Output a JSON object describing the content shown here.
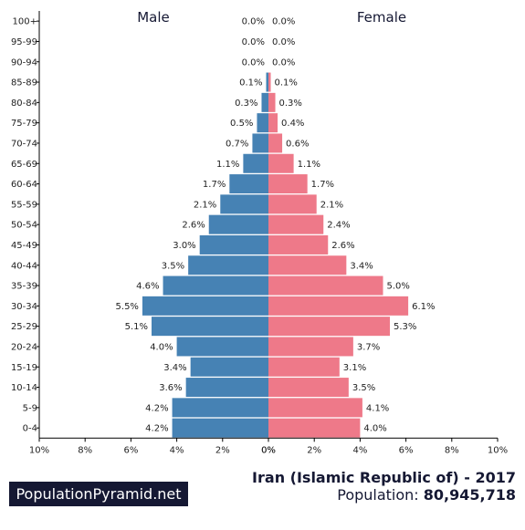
{
  "chart_data": {
    "type": "bar",
    "orientation": "horizontal-pyramid",
    "categories": [
      "100+",
      "95-99",
      "90-94",
      "85-89",
      "80-84",
      "75-79",
      "70-74",
      "65-69",
      "60-64",
      "55-59",
      "50-54",
      "45-49",
      "40-44",
      "35-39",
      "30-34",
      "25-29",
      "20-24",
      "15-19",
      "10-14",
      "5-9",
      "0-4"
    ],
    "series": [
      {
        "name": "Male",
        "color": "#4682b4",
        "values": [
          0.0,
          0.0,
          0.0,
          0.1,
          0.3,
          0.5,
          0.7,
          1.1,
          1.7,
          2.1,
          2.6,
          3.0,
          3.5,
          4.6,
          5.5,
          5.1,
          4.0,
          3.4,
          3.6,
          4.2,
          4.2
        ],
        "labels": [
          "0.0%",
          "0.0%",
          "0.0%",
          "0.1%",
          "0.3%",
          "0.5%",
          "0.7%",
          "1.1%",
          "1.7%",
          "2.1%",
          "2.6%",
          "3.0%",
          "3.5%",
          "4.6%",
          "5.5%",
          "5.1%",
          "4.0%",
          "3.4%",
          "3.6%",
          "4.2%",
          "4.2%"
        ]
      },
      {
        "name": "Female",
        "color": "#ee7989",
        "values": [
          0.0,
          0.0,
          0.0,
          0.1,
          0.3,
          0.4,
          0.6,
          1.1,
          1.7,
          2.1,
          2.4,
          2.6,
          3.4,
          5.0,
          6.1,
          5.3,
          3.7,
          3.1,
          3.5,
          4.1,
          4.0
        ],
        "labels": [
          "0.0%",
          "0.0%",
          "0.0%",
          "0.1%",
          "0.3%",
          "0.4%",
          "0.6%",
          "1.1%",
          "1.7%",
          "2.1%",
          "2.4%",
          "2.6%",
          "3.4%",
          "5.0%",
          "6.1%",
          "5.3%",
          "3.7%",
          "3.1%",
          "3.5%",
          "4.1%",
          "4.0%"
        ]
      }
    ],
    "x_ticks_left": [
      "10%",
      "8%",
      "6%",
      "4%",
      "2%",
      "0%"
    ],
    "x_ticks_right": [
      "0%",
      "2%",
      "4%",
      "6%",
      "8%",
      "10%"
    ],
    "xlim": [
      0,
      10
    ],
    "unit": "%",
    "grid": false,
    "legend": "top-center"
  },
  "footer": {
    "brand": "PopulationPyramid.net",
    "title": "Iran (Islamic Republic of) - 2017",
    "population_label": "Population:",
    "population_value": "80,945,718"
  }
}
